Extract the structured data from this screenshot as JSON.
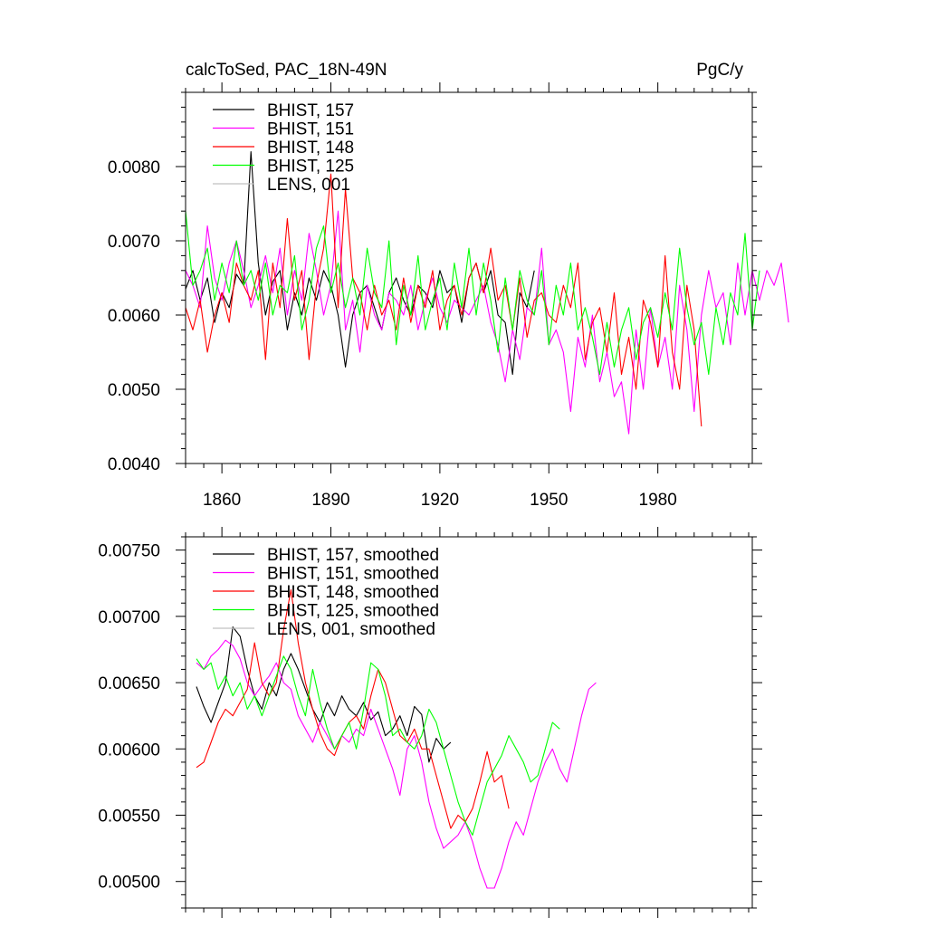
{
  "header": {
    "left_title": "calcToSed, PAC_18N-49N",
    "right_title": "PgC/y"
  },
  "colors": {
    "BHIST_157": "#000000",
    "BHIST_151": "#ff00ff",
    "BHIST_148": "#ff0000",
    "BHIST_125": "#00ff00",
    "LENS_001": "#c0c0c0"
  },
  "chart_data": [
    {
      "type": "line",
      "title": "calcToSed, PAC_18N-49N",
      "units": "PgC/y",
      "xlim": [
        1850,
        2006
      ],
      "ylim": [
        0.004,
        0.009
      ],
      "xticks": [
        1860,
        1890,
        1920,
        1950,
        1980
      ],
      "xtick_labels": [
        "1860",
        "1890",
        "1920",
        "1950",
        "1980"
      ],
      "yticks": [
        0.004,
        0.005,
        0.006,
        0.007,
        0.008
      ],
      "ytick_labels": [
        "0.0040",
        "0.0050",
        "0.0060",
        "0.0070",
        "0.0080"
      ],
      "legend": [
        "BHIST, 157",
        "BHIST, 151",
        "BHIST, 148",
        "BHIST, 125",
        "LENS, 001"
      ],
      "legend_position": "top-left",
      "series": [
        {
          "name": "BHIST, 157",
          "color": "#000000",
          "x_start": 1850,
          "x_step": 2,
          "values": [
            0.00635,
            0.0066,
            0.0062,
            0.0065,
            0.0059,
            0.0063,
            0.0061,
            0.00655,
            0.0064,
            0.0082,
            0.0067,
            0.006,
            0.00645,
            0.0066,
            0.0058,
            0.0063,
            0.006,
            0.0065,
            0.0062,
            0.0066,
            0.0064,
            0.006,
            0.0053,
            0.006,
            0.0063,
            0.0064,
            0.0061,
            0.0058,
            0.0063,
            0.0065,
            0.0062,
            0.006,
            0.0064,
            0.0063,
            0.0061,
            0.0066,
            0.0063,
            0.0064,
            0.0059,
            0.0065,
            0.0067,
            0.0063,
            0.0066,
            0.006,
            0.0059,
            0.0052,
            0.0063,
            0.0061,
            0.0066
          ]
        },
        {
          "name": "BHIST, 151",
          "color": "#ff00ff",
          "x_start": 1850,
          "x_step": 2,
          "values": [
            0.0066,
            0.0064,
            0.0061,
            0.0072,
            0.0065,
            0.0062,
            0.0067,
            0.007,
            0.0066,
            0.0061,
            0.0064,
            0.0068,
            0.0063,
            0.0069,
            0.006,
            0.0066,
            0.0062,
            0.0071,
            0.0066,
            0.006,
            0.0064,
            0.0074,
            0.0058,
            0.0062,
            0.0055,
            0.0064,
            0.006,
            0.0058,
            0.0063,
            0.0062,
            0.006,
            0.0064,
            0.0058,
            0.0062,
            0.0065,
            0.0061,
            0.0059,
            0.0062,
            0.0061,
            0.006,
            0.0062,
            0.0064,
            0.0059,
            0.0056,
            0.0051,
            0.0058,
            0.0054,
            0.0061,
            0.006,
            0.0069,
            0.0056,
            0.0058,
            0.0055,
            0.0047,
            0.0057,
            0.0053,
            0.006,
            0.0051,
            0.0055,
            0.0049,
            0.0051,
            0.0044,
            0.0058,
            0.005,
            0.0061,
            0.0053,
            0.0057,
            0.005,
            0.0064,
            0.0058,
            0.0047,
            0.006,
            0.0066,
            0.0061,
            0.0063,
            0.0056,
            0.0067,
            0.006,
            0.0066,
            0.0062,
            0.0066,
            0.0064,
            0.0067,
            0.0059
          ]
        },
        {
          "name": "BHIST, 148",
          "color": "#ff0000",
          "x_start": 1850,
          "x_step": 2,
          "values": [
            0.0061,
            0.0058,
            0.0062,
            0.0055,
            0.006,
            0.0063,
            0.0059,
            0.0067,
            0.0064,
            0.0062,
            0.0066,
            0.0054,
            0.0067,
            0.0061,
            0.0073,
            0.0062,
            0.0066,
            0.0054,
            0.0064,
            0.0069,
            0.0079,
            0.0061,
            0.0077,
            0.0065,
            0.0063,
            0.0058,
            0.0064,
            0.006,
            0.0062,
            0.0058,
            0.0065,
            0.0059,
            0.0064,
            0.0061,
            0.0066,
            0.0058,
            0.0062,
            0.0064,
            0.006,
            0.0065,
            0.0067,
            0.0063,
            0.0069,
            0.0062,
            0.0064,
            0.0058,
            0.0065,
            0.0057,
            0.0062,
            0.0063,
            0.006,
            0.0059,
            0.0064,
            0.0061,
            0.0067,
            0.0054,
            0.0059,
            0.0061,
            0.0055,
            0.0063,
            0.0052,
            0.0057,
            0.005,
            0.0062,
            0.0059,
            0.0053,
            0.0068,
            0.0055,
            0.005,
            0.0064,
            0.0058,
            0.0045
          ]
        },
        {
          "name": "BHIST, 125",
          "color": "#00ff00",
          "x_start": 1850,
          "x_step": 2,
          "values": [
            0.0074,
            0.0064,
            0.0066,
            0.0069,
            0.0062,
            0.0067,
            0.0063,
            0.007,
            0.0064,
            0.0066,
            0.0062,
            0.0067,
            0.006,
            0.0064,
            0.0063,
            0.0068,
            0.0058,
            0.0062,
            0.0069,
            0.0072,
            0.0063,
            0.0067,
            0.0061,
            0.0065,
            0.006,
            0.0069,
            0.0063,
            0.0061,
            0.007,
            0.0056,
            0.0064,
            0.006,
            0.0068,
            0.0058,
            0.0062,
            0.0065,
            0.0058,
            0.0067,
            0.0061,
            0.0069,
            0.006,
            0.0067,
            0.0062,
            0.0055,
            0.0065,
            0.0058,
            0.0066,
            0.0062,
            0.006,
            0.0066,
            0.0056,
            0.0064,
            0.006,
            0.0067,
            0.0058,
            0.0061,
            0.0057,
            0.0052,
            0.0059,
            0.0053,
            0.0058,
            0.0061,
            0.0054,
            0.0059,
            0.0061,
            0.0057,
            0.0063,
            0.0058,
            0.0069,
            0.0061,
            0.0056,
            0.0059,
            0.0052,
            0.0061,
            0.0056,
            0.0063,
            0.006,
            0.0071,
            0.0058,
            0.0066
          ]
        },
        {
          "name": "LENS, 001",
          "color": "#c0c0c0",
          "x_start": 1850,
          "x_step": 2,
          "values": []
        }
      ]
    },
    {
      "type": "line",
      "title": "",
      "xlim": [
        1850,
        2006
      ],
      "ylim": [
        0.0048,
        0.0076
      ],
      "xticks": [
        1860,
        1890,
        1920,
        1950,
        1980
      ],
      "yticks": [
        0.005,
        0.0055,
        0.006,
        0.0065,
        0.007,
        0.0075
      ],
      "ytick_labels": [
        "0.00500",
        "0.00550",
        "0.00600",
        "0.00650",
        "0.00700",
        "0.00750"
      ],
      "legend": [
        "BHIST, 157, smoothed",
        "BHIST, 151, smoothed",
        "BHIST, 148, smoothed",
        "BHIST, 125, smoothed",
        "LENS, 001, smoothed"
      ],
      "legend_position": "top-left",
      "series": [
        {
          "name": "BHIST, 157, smoothed",
          "color": "#000000",
          "x_start": 1853,
          "x_step": 2,
          "values": [
            0.00647,
            0.00632,
            0.0062,
            0.00635,
            0.0065,
            0.00692,
            0.00685,
            0.0066,
            0.0064,
            0.0063,
            0.0065,
            0.0064,
            0.0066,
            0.00672,
            0.0066,
            0.00645,
            0.0063,
            0.0062,
            0.00635,
            0.00625,
            0.0064,
            0.0063,
            0.00625,
            0.00635,
            0.00622,
            0.00628,
            0.0061,
            0.00615,
            0.00625,
            0.0061,
            0.00632,
            0.00626,
            0.0059,
            0.00608,
            0.006,
            0.00605
          ]
        },
        {
          "name": "BHIST, 151, smoothed",
          "color": "#ff00ff",
          "x_start": 1853,
          "x_step": 2,
          "values": [
            0.00665,
            0.0066,
            0.0067,
            0.00675,
            0.00682,
            0.00678,
            0.00668,
            0.0065,
            0.0064,
            0.00648,
            0.00655,
            0.00665,
            0.0065,
            0.00645,
            0.00625,
            0.00615,
            0.00605,
            0.0062,
            0.0061,
            0.006,
            0.0061,
            0.00605,
            0.00615,
            0.0061,
            0.0063,
            0.00615,
            0.006,
            0.00585,
            0.00565,
            0.006,
            0.0061,
            0.0059,
            0.0056,
            0.0054,
            0.00525,
            0.0053,
            0.00535,
            0.00545,
            0.0053,
            0.0051,
            0.00495,
            0.00495,
            0.0051,
            0.0053,
            0.00545,
            0.00535,
            0.00555,
            0.00575,
            0.0059,
            0.006,
            0.00585,
            0.00575,
            0.006,
            0.00625,
            0.00645,
            0.0065
          ]
        },
        {
          "name": "BHIST, 148, smoothed",
          "color": "#ff0000",
          "x_start": 1853,
          "x_step": 2,
          "values": [
            0.00586,
            0.0059,
            0.00605,
            0.0062,
            0.0063,
            0.00625,
            0.00635,
            0.00645,
            0.0068,
            0.0065,
            0.0064,
            0.0065,
            0.0069,
            0.0072,
            0.0068,
            0.0065,
            0.0063,
            0.00612,
            0.006,
            0.00595,
            0.0061,
            0.0062,
            0.00625,
            0.00615,
            0.0064,
            0.0066,
            0.0065,
            0.0063,
            0.0061,
            0.00605,
            0.00615,
            0.006,
            0.006,
            0.0058,
            0.0056,
            0.0054,
            0.0055,
            0.00545,
            0.00555,
            0.00575,
            0.00598,
            0.00575,
            0.0058,
            0.00555
          ]
        },
        {
          "name": "BHIST, 125, smoothed",
          "color": "#00ff00",
          "x_start": 1853,
          "x_step": 2,
          "values": [
            0.00668,
            0.0066,
            0.00665,
            0.00645,
            0.00655,
            0.0064,
            0.0065,
            0.0063,
            0.0064,
            0.00625,
            0.0064,
            0.00655,
            0.0067,
            0.0066,
            0.0064,
            0.00625,
            0.0066,
            0.00635,
            0.00615,
            0.006,
            0.0061,
            0.0062,
            0.006,
            0.0063,
            0.00665,
            0.0066,
            0.0064,
            0.0061,
            0.00615,
            0.00605,
            0.006,
            0.0061,
            0.0063,
            0.0062,
            0.006,
            0.0058,
            0.0056,
            0.00545,
            0.00535,
            0.00555,
            0.00575,
            0.00585,
            0.00595,
            0.0061,
            0.006,
            0.0059,
            0.00575,
            0.0058,
            0.006,
            0.0062,
            0.00615
          ]
        },
        {
          "name": "LENS, 001, smoothed",
          "color": "#c0c0c0",
          "x_start": 1853,
          "x_step": 2,
          "values": []
        }
      ]
    }
  ]
}
